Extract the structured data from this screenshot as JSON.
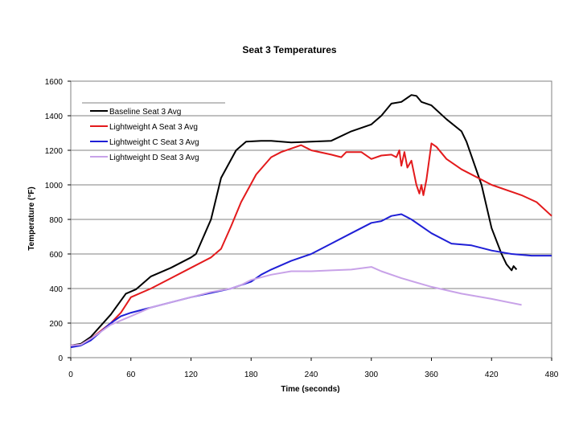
{
  "chart_data": {
    "type": "line",
    "title": "Seat 3 Temperatures",
    "xlabel": "Time (seconds)",
    "ylabel": "Temperature (°F)",
    "xlim": [
      0,
      480
    ],
    "ylim": [
      0,
      1600
    ],
    "xticks": [
      0,
      60,
      120,
      180,
      240,
      300,
      360,
      420,
      480
    ],
    "yticks": [
      0,
      200,
      400,
      600,
      800,
      1000,
      1200,
      1400,
      1600
    ],
    "grid": "horizontal",
    "legend_position": "top-left",
    "series": [
      {
        "name": "Baseline Seat 3 Avg",
        "color": "#000000",
        "points": [
          [
            0,
            70
          ],
          [
            10,
            80
          ],
          [
            20,
            120
          ],
          [
            40,
            250
          ],
          [
            55,
            370
          ],
          [
            65,
            395
          ],
          [
            80,
            470
          ],
          [
            100,
            520
          ],
          [
            120,
            580
          ],
          [
            125,
            600
          ],
          [
            140,
            800
          ],
          [
            150,
            1040
          ],
          [
            165,
            1200
          ],
          [
            175,
            1250
          ],
          [
            190,
            1255
          ],
          [
            200,
            1255
          ],
          [
            220,
            1245
          ],
          [
            240,
            1250
          ],
          [
            260,
            1255
          ],
          [
            280,
            1310
          ],
          [
            300,
            1350
          ],
          [
            310,
            1400
          ],
          [
            320,
            1470
          ],
          [
            330,
            1480
          ],
          [
            340,
            1520
          ],
          [
            345,
            1515
          ],
          [
            350,
            1480
          ],
          [
            360,
            1460
          ],
          [
            375,
            1380
          ],
          [
            390,
            1310
          ],
          [
            395,
            1250
          ],
          [
            410,
            1000
          ],
          [
            420,
            750
          ],
          [
            430,
            600
          ],
          [
            435,
            540
          ],
          [
            440,
            505
          ],
          [
            442,
            530
          ],
          [
            445,
            510
          ]
        ]
      },
      {
        "name": "Lightweight A Seat 3 Avg",
        "color": "#e31a1c",
        "points": [
          [
            0,
            70
          ],
          [
            10,
            75
          ],
          [
            20,
            110
          ],
          [
            40,
            200
          ],
          [
            50,
            260
          ],
          [
            60,
            350
          ],
          [
            80,
            400
          ],
          [
            100,
            460
          ],
          [
            120,
            520
          ],
          [
            140,
            580
          ],
          [
            150,
            630
          ],
          [
            160,
            760
          ],
          [
            170,
            900
          ],
          [
            185,
            1060
          ],
          [
            200,
            1160
          ],
          [
            210,
            1190
          ],
          [
            230,
            1230
          ],
          [
            240,
            1200
          ],
          [
            260,
            1175
          ],
          [
            270,
            1160
          ],
          [
            275,
            1190
          ],
          [
            290,
            1190
          ],
          [
            300,
            1150
          ],
          [
            310,
            1170
          ],
          [
            320,
            1175
          ],
          [
            325,
            1160
          ],
          [
            328,
            1200
          ],
          [
            330,
            1110
          ],
          [
            333,
            1190
          ],
          [
            336,
            1100
          ],
          [
            340,
            1140
          ],
          [
            345,
            1000
          ],
          [
            348,
            950
          ],
          [
            350,
            1000
          ],
          [
            352,
            940
          ],
          [
            355,
            1030
          ],
          [
            360,
            1240
          ],
          [
            365,
            1220
          ],
          [
            375,
            1150
          ],
          [
            390,
            1090
          ],
          [
            420,
            1000
          ],
          [
            450,
            940
          ],
          [
            465,
            900
          ],
          [
            480,
            820
          ]
        ]
      },
      {
        "name": "Lightweight C Seat 3 Avg",
        "color": "#1f1fd6",
        "points": [
          [
            0,
            60
          ],
          [
            10,
            70
          ],
          [
            20,
            100
          ],
          [
            40,
            200
          ],
          [
            50,
            240
          ],
          [
            60,
            260
          ],
          [
            80,
            290
          ],
          [
            100,
            320
          ],
          [
            120,
            350
          ],
          [
            140,
            375
          ],
          [
            160,
            400
          ],
          [
            180,
            440
          ],
          [
            190,
            480
          ],
          [
            200,
            510
          ],
          [
            220,
            560
          ],
          [
            240,
            600
          ],
          [
            260,
            660
          ],
          [
            280,
            720
          ],
          [
            300,
            780
          ],
          [
            310,
            790
          ],
          [
            320,
            820
          ],
          [
            330,
            830
          ],
          [
            340,
            800
          ],
          [
            360,
            720
          ],
          [
            380,
            660
          ],
          [
            400,
            650
          ],
          [
            420,
            620
          ],
          [
            440,
            600
          ],
          [
            460,
            590
          ],
          [
            480,
            590
          ]
        ]
      },
      {
        "name": "Lightweight D Seat 3 Avg",
        "color": "#c8a2e8",
        "points": [
          [
            0,
            70
          ],
          [
            10,
            75
          ],
          [
            20,
            110
          ],
          [
            40,
            190
          ],
          [
            60,
            240
          ],
          [
            80,
            290
          ],
          [
            100,
            320
          ],
          [
            120,
            350
          ],
          [
            140,
            380
          ],
          [
            160,
            400
          ],
          [
            170,
            420
          ],
          [
            180,
            450
          ],
          [
            200,
            480
          ],
          [
            220,
            500
          ],
          [
            240,
            500
          ],
          [
            260,
            505
          ],
          [
            280,
            510
          ],
          [
            300,
            525
          ],
          [
            310,
            500
          ],
          [
            330,
            460
          ],
          [
            360,
            410
          ],
          [
            390,
            370
          ],
          [
            420,
            340
          ],
          [
            450,
            305
          ]
        ]
      }
    ]
  }
}
